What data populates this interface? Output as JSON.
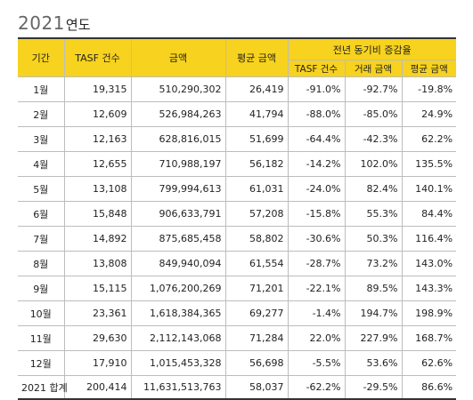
{
  "title": {
    "year": "2021",
    "unit": "연도"
  },
  "headers": {
    "period": "기간",
    "tasf_count": "TASF 건수",
    "amount": "금액",
    "avg_amount": "평균 금액",
    "yoy_group": "전년 동기비 증감율",
    "yoy_tasf": "TASF 건수",
    "yoy_amount": "거래 금액",
    "yoy_avg": "평균 금액"
  },
  "rows": [
    {
      "period": "1월",
      "tasf_count": "19,315",
      "amount": "510,290,302",
      "avg_amount": "26,419",
      "yoy_tasf": "-91.0%",
      "yoy_amount": "-92.7%",
      "yoy_avg": "-19.8%"
    },
    {
      "period": "2월",
      "tasf_count": "12,609",
      "amount": "526,984,263",
      "avg_amount": "41,794",
      "yoy_tasf": "-88.0%",
      "yoy_amount": "-85.0%",
      "yoy_avg": "24.9%"
    },
    {
      "period": "3월",
      "tasf_count": "12,163",
      "amount": "628,816,015",
      "avg_amount": "51,699",
      "yoy_tasf": "-64.4%",
      "yoy_amount": "-42.3%",
      "yoy_avg": "62.2%"
    },
    {
      "period": "4월",
      "tasf_count": "12,655",
      "amount": "710,988,197",
      "avg_amount": "56,182",
      "yoy_tasf": "-14.2%",
      "yoy_amount": "102.0%",
      "yoy_avg": "135.5%"
    },
    {
      "period": "5월",
      "tasf_count": "13,108",
      "amount": "799,994,613",
      "avg_amount": "61,031",
      "yoy_tasf": "-24.0%",
      "yoy_amount": "82.4%",
      "yoy_avg": "140.1%"
    },
    {
      "period": "6월",
      "tasf_count": "15,848",
      "amount": "906,633,791",
      "avg_amount": "57,208",
      "yoy_tasf": "-15.8%",
      "yoy_amount": "55.3%",
      "yoy_avg": "84.4%"
    },
    {
      "period": "7월",
      "tasf_count": "14,892",
      "amount": "875,685,458",
      "avg_amount": "58,802",
      "yoy_tasf": "-30.6%",
      "yoy_amount": "50.3%",
      "yoy_avg": "116.4%"
    },
    {
      "period": "8월",
      "tasf_count": "13,808",
      "amount": "849,940,094",
      "avg_amount": "61,554",
      "yoy_tasf": "-28.7%",
      "yoy_amount": "73.2%",
      "yoy_avg": "143.0%"
    },
    {
      "period": "9월",
      "tasf_count": "15,115",
      "amount": "1,076,200,269",
      "avg_amount": "71,201",
      "yoy_tasf": "-22.1%",
      "yoy_amount": "89.5%",
      "yoy_avg": "143.3%"
    },
    {
      "period": "10월",
      "tasf_count": "23,361",
      "amount": "1,618,384,365",
      "avg_amount": "69,277",
      "yoy_tasf": "-1.4%",
      "yoy_amount": "194.7%",
      "yoy_avg": "198.9%"
    },
    {
      "period": "11월",
      "tasf_count": "29,630",
      "amount": "2,112,143,068",
      "avg_amount": "71,284",
      "yoy_tasf": "22.0%",
      "yoy_amount": "227.9%",
      "yoy_avg": "168.7%"
    },
    {
      "period": "12월",
      "tasf_count": "17,910",
      "amount": "1,015,453,328",
      "avg_amount": "56,698",
      "yoy_tasf": "-5.5%",
      "yoy_amount": "53.6%",
      "yoy_avg": "62.6%"
    }
  ],
  "total": {
    "period": "2021 합계",
    "tasf_count": "200,414",
    "amount": "11,631,513,763",
    "avg_amount": "58,037",
    "yoy_tasf": "-62.2%",
    "yoy_amount": "-29.5%",
    "yoy_avg": "86.6%"
  },
  "colors": {
    "header_bg": "#f7d21e",
    "border": "#bdbdbd",
    "rule": "#333333"
  }
}
